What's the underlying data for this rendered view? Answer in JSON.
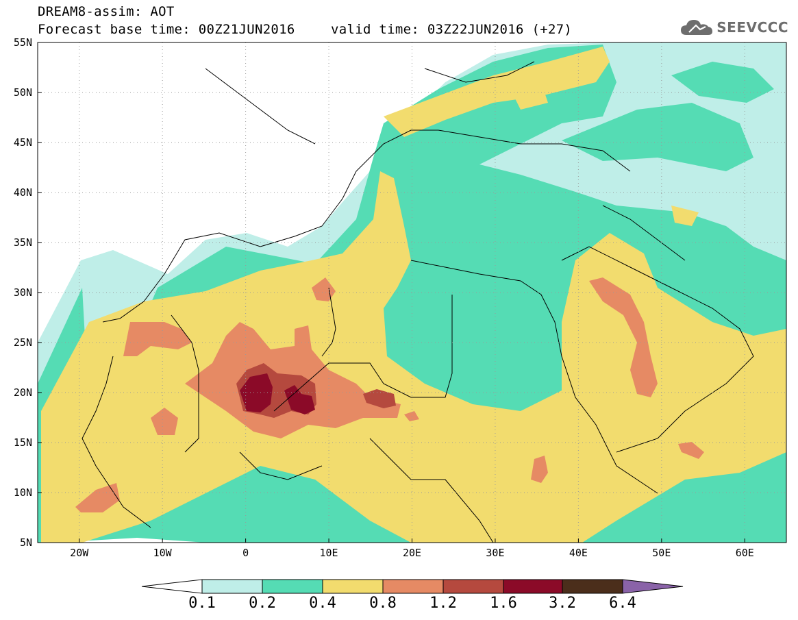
{
  "title": {
    "line1": "DREAM8-assim: AOT",
    "base_time": "Forecast base time: 00Z21JUN2016",
    "valid_time": "valid time: 03Z22JUN2016 (+27)"
  },
  "logo": {
    "text": "SEEVCCC",
    "icon": "cloud-icon"
  },
  "map": {
    "type": "filled-contour-map",
    "variable": "AOT",
    "lat_range": [
      5,
      55
    ],
    "lon_range": [
      -25,
      65
    ],
    "grid": true,
    "lat_labels": [
      "5N",
      "10N",
      "15N",
      "20N",
      "25N",
      "30N",
      "35N",
      "40N",
      "45N",
      "50N",
      "55N"
    ],
    "lon_labels": [
      "20W",
      "10W",
      "0",
      "10E",
      "20E",
      "30E",
      "40E",
      "50E",
      "60E"
    ],
    "colors": [
      "#ffffff",
      "#bfeee8",
      "#55dcb4",
      "#f2dc6e",
      "#e68a64",
      "#b5493e",
      "#8b0a28",
      "#4b2e1b",
      "#8a63a8"
    ],
    "colorbar_levels": [
      "0.1",
      "0.2",
      "0.4",
      "0.8",
      "1.2",
      "1.6",
      "3.2",
      "6.4"
    ]
  }
}
